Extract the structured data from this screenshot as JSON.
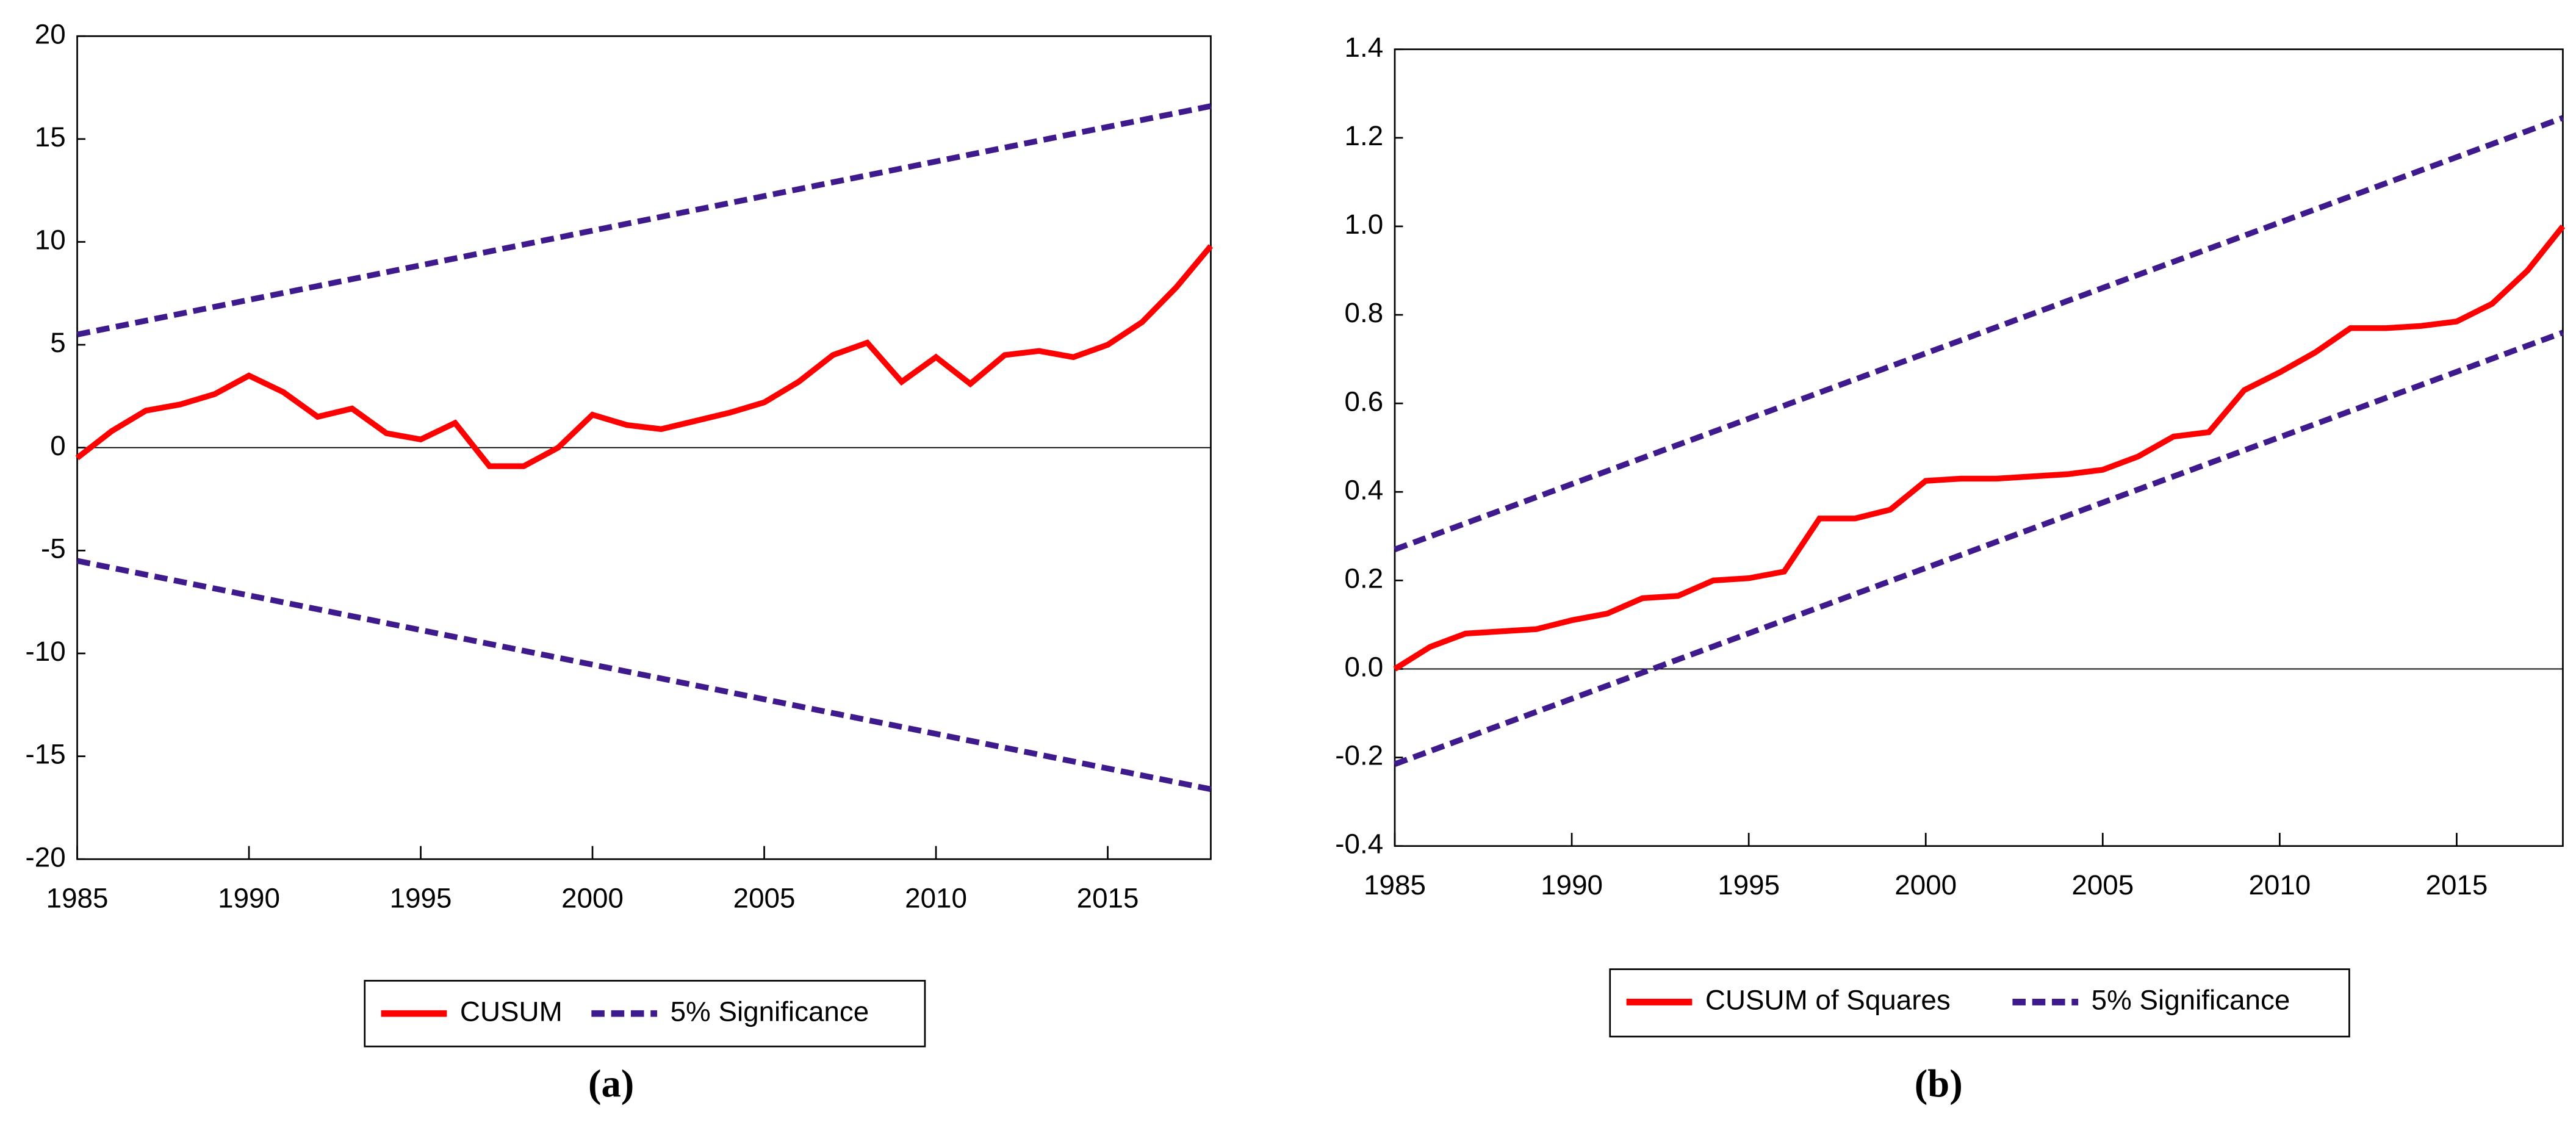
{
  "chart_data": [
    {
      "type": "line",
      "caption": "(a)",
      "x": [
        1985,
        1986,
        1987,
        1988,
        1989,
        1990,
        1991,
        1992,
        1993,
        1994,
        1995,
        1996,
        1997,
        1998,
        1999,
        2000,
        2001,
        2002,
        2003,
        2004,
        2005,
        2006,
        2007,
        2008,
        2009,
        2010,
        2011,
        2012,
        2013,
        2014,
        2015,
        2016,
        2017,
        2018
      ],
      "series": [
        {
          "name": "CUSUM",
          "color": "#ff0000",
          "style": "solid",
          "values": [
            -0.5,
            0.8,
            1.8,
            2.1,
            2.6,
            3.5,
            2.7,
            1.5,
            1.9,
            0.7,
            0.4,
            1.2,
            -0.9,
            -0.9,
            0.0,
            1.6,
            1.1,
            0.9,
            1.3,
            1.7,
            2.2,
            3.2,
            4.5,
            5.1,
            3.2,
            4.4,
            3.1,
            4.5,
            4.7,
            4.4,
            5.0,
            6.1,
            7.8,
            9.8
          ]
        },
        {
          "name": "5% Significance",
          "color": "#3f1a8c",
          "style": "dashed",
          "x": [
            1985,
            2018
          ],
          "values": [
            5.5,
            16.6
          ]
        },
        {
          "color": "#3f1a8c",
          "style": "dashed",
          "x": [
            1985,
            2018
          ],
          "values": [
            -5.5,
            -16.6
          ]
        }
      ],
      "xlim": [
        1985,
        2018
      ],
      "xticks": [
        1985,
        1990,
        1995,
        2000,
        2005,
        2010,
        2015
      ],
      "ylim": [
        -20,
        20
      ],
      "yticks": [
        -20,
        -15,
        -10,
        -5,
        0,
        5,
        10,
        15,
        20
      ]
    },
    {
      "type": "line",
      "caption": "(b)",
      "x": [
        1985,
        1986,
        1987,
        1988,
        1989,
        1990,
        1991,
        1992,
        1993,
        1994,
        1995,
        1996,
        1997,
        1998,
        1999,
        2000,
        2001,
        2002,
        2003,
        2004,
        2005,
        2006,
        2007,
        2008,
        2009,
        2010,
        2011,
        2012,
        2013,
        2014,
        2015,
        2016,
        2017,
        2018
      ],
      "series": [
        {
          "name": "CUSUM of Squares",
          "color": "#ff0000",
          "style": "solid",
          "values": [
            0.0,
            0.05,
            0.08,
            0.085,
            0.09,
            0.11,
            0.125,
            0.16,
            0.165,
            0.2,
            0.205,
            0.22,
            0.34,
            0.34,
            0.36,
            0.425,
            0.43,
            0.43,
            0.435,
            0.44,
            0.45,
            0.48,
            0.525,
            0.535,
            0.63,
            0.67,
            0.715,
            0.77,
            0.77,
            0.775,
            0.785,
            0.825,
            0.9,
            1.0
          ]
        },
        {
          "name": "5% Significance",
          "color": "#3f1a8c",
          "style": "dashed",
          "x": [
            1985,
            2018
          ],
          "values": [
            0.27,
            1.245
          ]
        },
        {
          "color": "#3f1a8c",
          "style": "dashed",
          "x": [
            1985,
            2018
          ],
          "values": [
            -0.215,
            0.76
          ]
        }
      ],
      "xlim": [
        1985,
        2018
      ],
      "xticks": [
        1985,
        1990,
        1995,
        2000,
        2005,
        2010,
        2015
      ],
      "ylim": [
        -0.4,
        1.4
      ],
      "yticks": [
        -0.4,
        -0.2,
        {
          "value": 0,
          "label": "0.0"
        },
        0.2,
        0.4,
        0.6,
        0.8,
        {
          "value": 1,
          "label": "1.0"
        },
        1.2,
        1.4
      ]
    }
  ]
}
